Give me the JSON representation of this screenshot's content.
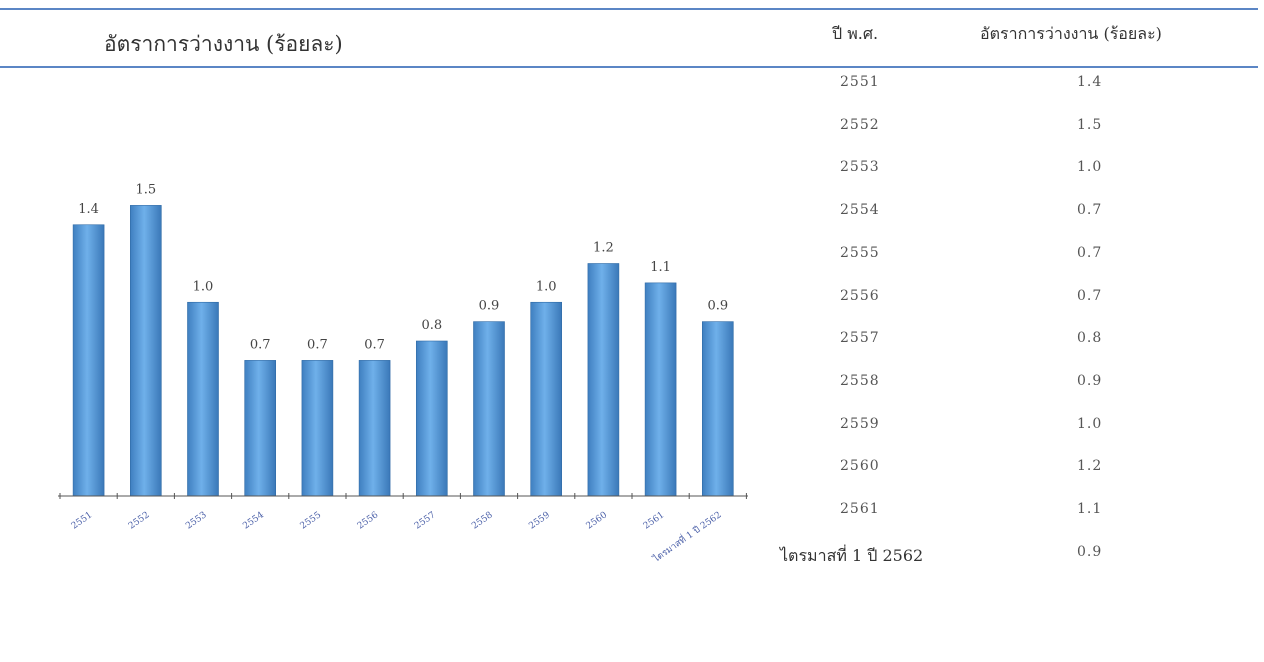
{
  "chart_data": {
    "type": "bar",
    "title": "อัตราการว่างงาน (ร้อยละ)",
    "categories": [
      "2551",
      "2552",
      "2553",
      "2554",
      "2555",
      "2556",
      "2557",
      "2558",
      "2559",
      "2560",
      "2561",
      "ไตรมาสที่ 1 ปี 2562"
    ],
    "values": [
      1.4,
      1.5,
      1.0,
      0.7,
      0.7,
      0.7,
      0.8,
      0.9,
      1.0,
      1.2,
      1.1,
      0.9
    ],
    "value_labels": [
      "1.4",
      "1.5",
      "1.0",
      "0.7",
      "0.7",
      "0.7",
      "0.8",
      "0.9",
      "1.0",
      "1.2",
      "1.1",
      "0.9"
    ],
    "ylim": [
      0,
      1.6
    ],
    "grid": false,
    "bar_color": "#5a9fd9"
  },
  "table": {
    "headers": [
      "ปี พ.ศ.",
      "อัตราการว่างงาน (ร้อยละ)"
    ],
    "rows": [
      [
        "2551",
        "1.4"
      ],
      [
        "2552",
        "1.5"
      ],
      [
        "2553",
        "1.0"
      ],
      [
        "2554",
        "0.7"
      ],
      [
        "2555",
        "0.7"
      ],
      [
        "2556",
        "0.7"
      ],
      [
        "2557",
        "0.8"
      ],
      [
        "2558",
        "0.9"
      ],
      [
        "2559",
        "1.0"
      ],
      [
        "2560",
        "1.2"
      ],
      [
        "2561",
        "1.1"
      ],
      [
        "ไตรมาสที่ 1 ปี 2562",
        "0.9"
      ]
    ]
  },
  "colors": {
    "accent_rule": "#5b86c5"
  }
}
